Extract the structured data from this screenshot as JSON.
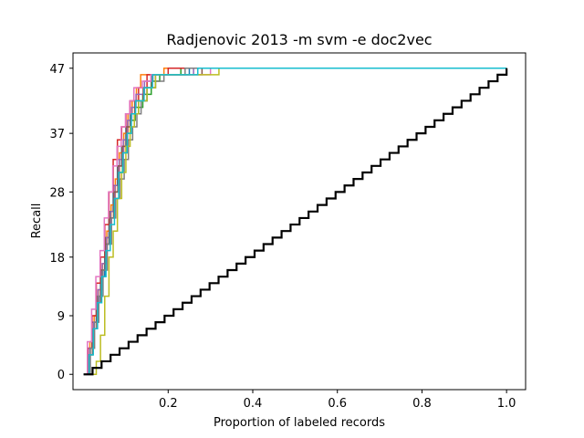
{
  "chart_data": {
    "type": "line",
    "title": "Radjenovic 2013 -m svm -e doc2vec",
    "xlabel": "Proportion of labeled records",
    "ylabel": "Recall",
    "xlim": [
      -0.025,
      1.045
    ],
    "ylim": [
      -2.35,
      49.35
    ],
    "x_ticks": [
      0.2,
      0.4,
      0.6,
      0.8,
      1.0
    ],
    "x_tick_labels": [
      "0.2",
      "0.4",
      "0.6",
      "0.8",
      "1.0"
    ],
    "y_ticks": [
      0,
      9,
      18,
      28,
      37,
      47
    ],
    "y_tick_labels": [
      "0",
      "9",
      "18",
      "28",
      "37",
      "47"
    ],
    "grid": false,
    "step_style": "post",
    "reference_series": {
      "description_in_chart": "black staircase, random screening baseline",
      "color": "#000000",
      "x_end": 1.0,
      "y_end": 47,
      "steps": 47
    },
    "series": [
      {
        "color": "#1f77b4",
        "points": [
          [
            0.0,
            0
          ],
          [
            0.01,
            4
          ],
          [
            0.02,
            8
          ],
          [
            0.03,
            11
          ],
          [
            0.04,
            15
          ],
          [
            0.05,
            20
          ],
          [
            0.06,
            25
          ],
          [
            0.07,
            29
          ],
          [
            0.08,
            32
          ],
          [
            0.09,
            35
          ],
          [
            0.1,
            38
          ],
          [
            0.11,
            40
          ],
          [
            0.13,
            42
          ],
          [
            0.15,
            44
          ],
          [
            0.17,
            46
          ],
          [
            0.25,
            47
          ]
        ]
      },
      {
        "color": "#ff7f0e",
        "points": [
          [
            0.0,
            0
          ],
          [
            0.015,
            5
          ],
          [
            0.025,
            9
          ],
          [
            0.035,
            13
          ],
          [
            0.045,
            17
          ],
          [
            0.055,
            22
          ],
          [
            0.065,
            26
          ],
          [
            0.075,
            30
          ],
          [
            0.085,
            34
          ],
          [
            0.095,
            37
          ],
          [
            0.105,
            40
          ],
          [
            0.115,
            42
          ],
          [
            0.125,
            44
          ],
          [
            0.135,
            46
          ],
          [
            0.19,
            47
          ]
        ]
      },
      {
        "color": "#2ca02c",
        "points": [
          [
            0.0,
            0
          ],
          [
            0.012,
            3
          ],
          [
            0.022,
            7
          ],
          [
            0.032,
            12
          ],
          [
            0.042,
            16
          ],
          [
            0.052,
            21
          ],
          [
            0.062,
            25
          ],
          [
            0.072,
            28
          ],
          [
            0.082,
            31
          ],
          [
            0.092,
            34
          ],
          [
            0.102,
            37
          ],
          [
            0.112,
            39
          ],
          [
            0.122,
            41
          ],
          [
            0.14,
            43
          ],
          [
            0.16,
            45
          ],
          [
            0.18,
            46
          ],
          [
            0.23,
            47
          ]
        ]
      },
      {
        "color": "#d62728",
        "points": [
          [
            0.0,
            0
          ],
          [
            0.01,
            4
          ],
          [
            0.02,
            9
          ],
          [
            0.03,
            14
          ],
          [
            0.04,
            18
          ],
          [
            0.05,
            23
          ],
          [
            0.06,
            28
          ],
          [
            0.07,
            33
          ],
          [
            0.08,
            36
          ],
          [
            0.09,
            38
          ],
          [
            0.1,
            40
          ],
          [
            0.11,
            42
          ],
          [
            0.13,
            44
          ],
          [
            0.15,
            46
          ],
          [
            0.2,
            47
          ]
        ]
      },
      {
        "color": "#9467bd",
        "points": [
          [
            0.0,
            0
          ],
          [
            0.014,
            4
          ],
          [
            0.024,
            8
          ],
          [
            0.034,
            13
          ],
          [
            0.044,
            17
          ],
          [
            0.054,
            21
          ],
          [
            0.064,
            25
          ],
          [
            0.074,
            29
          ],
          [
            0.084,
            33
          ],
          [
            0.094,
            36
          ],
          [
            0.104,
            39
          ],
          [
            0.114,
            41
          ],
          [
            0.124,
            43
          ],
          [
            0.144,
            45
          ],
          [
            0.164,
            46
          ],
          [
            0.26,
            47
          ]
        ]
      },
      {
        "color": "#8c564b",
        "points": [
          [
            0.0,
            0
          ],
          [
            0.011,
            3
          ],
          [
            0.021,
            7
          ],
          [
            0.031,
            11
          ],
          [
            0.041,
            16
          ],
          [
            0.051,
            20
          ],
          [
            0.061,
            24
          ],
          [
            0.071,
            28
          ],
          [
            0.081,
            32
          ],
          [
            0.091,
            35
          ],
          [
            0.101,
            38
          ],
          [
            0.111,
            40
          ],
          [
            0.121,
            42
          ],
          [
            0.141,
            44
          ],
          [
            0.161,
            46
          ],
          [
            0.28,
            47
          ]
        ]
      },
      {
        "color": "#e377c2",
        "points": [
          [
            0.0,
            0
          ],
          [
            0.009,
            5
          ],
          [
            0.019,
            10
          ],
          [
            0.029,
            15
          ],
          [
            0.039,
            19
          ],
          [
            0.049,
            24
          ],
          [
            0.059,
            28
          ],
          [
            0.069,
            32
          ],
          [
            0.079,
            35
          ],
          [
            0.089,
            38
          ],
          [
            0.099,
            40
          ],
          [
            0.109,
            42
          ],
          [
            0.119,
            44
          ],
          [
            0.139,
            45
          ],
          [
            0.159,
            46
          ],
          [
            0.3,
            47
          ]
        ]
      },
      {
        "color": "#7f7f7f",
        "points": [
          [
            0.0,
            0
          ],
          [
            0.016,
            4
          ],
          [
            0.026,
            8
          ],
          [
            0.036,
            12
          ],
          [
            0.046,
            16
          ],
          [
            0.056,
            20
          ],
          [
            0.066,
            24
          ],
          [
            0.076,
            27
          ],
          [
            0.086,
            30
          ],
          [
            0.096,
            33
          ],
          [
            0.106,
            36
          ],
          [
            0.116,
            38
          ],
          [
            0.126,
            40
          ],
          [
            0.136,
            42
          ],
          [
            0.15,
            44
          ],
          [
            0.17,
            45
          ],
          [
            0.19,
            46
          ],
          [
            0.24,
            47
          ]
        ]
      },
      {
        "color": "#bcbd22",
        "points": [
          [
            0.0,
            0
          ],
          [
            0.03,
            2
          ],
          [
            0.04,
            6
          ],
          [
            0.05,
            12
          ],
          [
            0.06,
            18
          ],
          [
            0.07,
            22
          ],
          [
            0.08,
            27
          ],
          [
            0.09,
            31
          ],
          [
            0.1,
            35
          ],
          [
            0.11,
            38
          ],
          [
            0.12,
            40
          ],
          [
            0.13,
            42
          ],
          [
            0.15,
            44
          ],
          [
            0.17,
            46
          ],
          [
            0.32,
            47
          ]
        ]
      },
      {
        "color": "#17becf",
        "points": [
          [
            0.0,
            0
          ],
          [
            0.013,
            3
          ],
          [
            0.023,
            7
          ],
          [
            0.033,
            11
          ],
          [
            0.043,
            15
          ],
          [
            0.053,
            19
          ],
          [
            0.063,
            23
          ],
          [
            0.073,
            27
          ],
          [
            0.083,
            31
          ],
          [
            0.093,
            34
          ],
          [
            0.103,
            37
          ],
          [
            0.113,
            40
          ],
          [
            0.123,
            42
          ],
          [
            0.143,
            44
          ],
          [
            0.163,
            46
          ],
          [
            0.27,
            47
          ]
        ]
      }
    ]
  }
}
